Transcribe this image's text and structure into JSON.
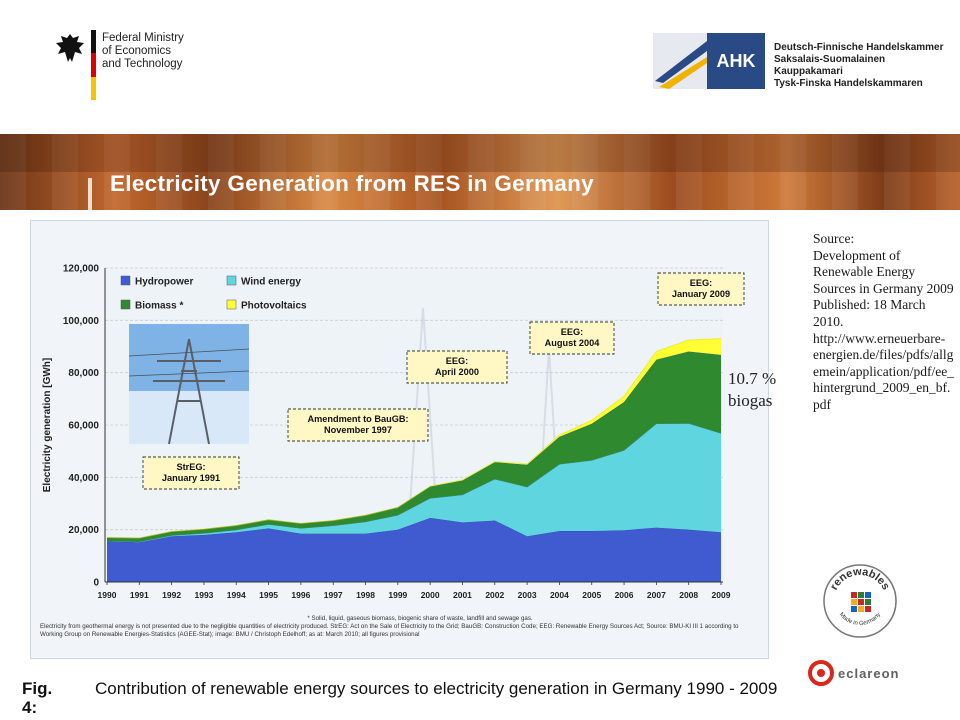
{
  "header": {
    "ministry_lines": [
      "Federal Ministry",
      "of Economics",
      "and Technology"
    ],
    "ahk_mark": "AHK",
    "ahk_lines": [
      "Deutsch-Finnische Handelskammer",
      "Saksalais-Suomalainen Kauppakamari",
      "Tysk-Finska Handelskammaren"
    ]
  },
  "slide_title": "Electricity Generation from RES in Germany",
  "chart_data": {
    "type": "area",
    "stacked": true,
    "x": [
      1990,
      1991,
      1992,
      1993,
      1994,
      1995,
      1996,
      1997,
      1998,
      1999,
      2000,
      2001,
      2002,
      2003,
      2004,
      2005,
      2006,
      2007,
      2008,
      2009
    ],
    "series": [
      {
        "name": "Hydropower",
        "color": "#3f5bcf",
        "values": [
          15500,
          15200,
          17500,
          18000,
          19000,
          20500,
          18500,
          18500,
          18500,
          20000,
          24500,
          22800,
          23500,
          17500,
          19500,
          19500,
          19800,
          20800,
          20000,
          19000
        ]
      },
      {
        "name": "Wind energy",
        "color": "#5fd6df",
        "values": [
          100,
          200,
          300,
          600,
          900,
          1500,
          2000,
          3000,
          4500,
          5500,
          7500,
          10500,
          15800,
          18800,
          25500,
          27000,
          30500,
          39700,
          40600,
          37800
        ]
      },
      {
        "name": "Biomass *",
        "color": "#2f8a2f",
        "values": [
          1400,
          1400,
          1500,
          1600,
          1700,
          1800,
          1900,
          2000,
          2500,
          3000,
          4500,
          5500,
          6500,
          8500,
          10500,
          14000,
          18500,
          24500,
          27500,
          30000
        ]
      },
      {
        "name": "Photovoltaics",
        "color": "#ffff33",
        "values": [
          0,
          0,
          0,
          0,
          0,
          0,
          0,
          0,
          0,
          0,
          100,
          200,
          200,
          300,
          600,
          1300,
          2200,
          3100,
          4400,
          6200
        ]
      }
    ],
    "ylabel": "Electricity generation [GWh]",
    "ylim": [
      0,
      120000
    ],
    "yticks": [
      "0",
      "20,000",
      "40,000",
      "60,000",
      "80,000",
      "100,000",
      "120,000"
    ],
    "grid": true,
    "legend_position": "top-left",
    "annotations": [
      {
        "text": "StrEG: January 1991",
        "lines": [
          "StrEG:",
          "January 1991"
        ]
      },
      {
        "text": "Amendment to BauGB: November 1997",
        "lines": [
          "Amendment to BauGB:",
          "November 1997"
        ]
      },
      {
        "text": "EEG: April 2000",
        "lines": [
          "EEG:",
          "April 2000"
        ]
      },
      {
        "text": "EEG: August 2004",
        "lines": [
          "EEG:",
          "August 2004"
        ]
      },
      {
        "text": "EEG: January 2009",
        "lines": [
          "EEG:",
          "January 2009"
        ]
      }
    ],
    "footnote": "* Solid, liquid, gaseous biomass, biogenic share of waste, landfill and sewage gas.",
    "notes": "Electricity from geothermal energy is not presented due to the negligible quantities of electricity produced. StrEG: Act on the Sale of Electricity to the Grid; BauGB: Construction Code; EEG: Renewable Energy Sources Act; Source: BMU-KI III 1 according to Working Group on Renewable Energies-Statistics (AGEE-Stat); image: BMU / Christoph Edelhoff; as at: March 2010; all figures provisional"
  },
  "callouts": {
    "biogas_lines": [
      "10.7 %",
      "biogas"
    ],
    "source_lines": [
      "Source:",
      "Development of Renewable Energy Sources in Germany 2009",
      "Published: 18 March 2010.",
      "http://www.erneuerbare-energien.de/files/pdfs/allgemein/application/pdf/ee_hintergrund_2009_en_bf.pdf"
    ]
  },
  "caption": {
    "label": "Fig. 4:",
    "text": "Contribution of renewable energy sources to electricity generation in Germany 1990 - 2009"
  },
  "logos": {
    "renewables_word": "renewables",
    "renewables_sub": "Made in Germany",
    "eclareon": "eclareon"
  }
}
